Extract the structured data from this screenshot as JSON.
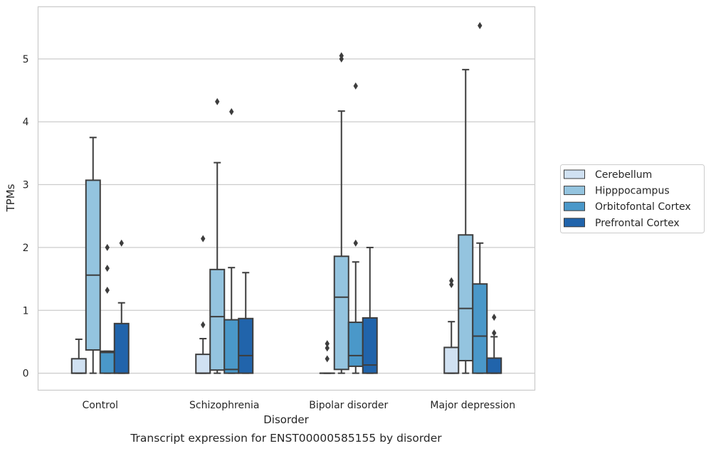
{
  "chart_data": {
    "type": "box",
    "title": "",
    "caption": "Transcript expression for ENST00000585155 by disorder",
    "xlabel": "Disorder",
    "ylabel": "TPMs",
    "ylim": [
      -0.27,
      5.83
    ],
    "yticks": [
      0,
      1,
      2,
      3,
      4,
      5
    ],
    "grid": "horizontal",
    "legend_position": "right",
    "categories": [
      "Control",
      "Schizophrenia",
      "Bipolar disorder",
      "Major depression"
    ],
    "series": [
      {
        "name": "Cerebellum",
        "color": "#d0e1f2",
        "boxes": [
          {
            "whislo": 0.0,
            "q1": 0.0,
            "med": 0.0,
            "q3": 0.23,
            "whishi": 0.54,
            "fliers": []
          },
          {
            "whislo": 0.0,
            "q1": 0.0,
            "med": 0.0,
            "q3": 0.3,
            "whishi": 0.55,
            "fliers": [
              0.77,
              2.14
            ]
          },
          {
            "whislo": 0.0,
            "q1": 0.0,
            "med": 0.0,
            "q3": 0.0,
            "whishi": 0.0,
            "fliers": [
              0.23,
              0.4,
              0.47
            ]
          },
          {
            "whislo": 0.0,
            "q1": 0.0,
            "med": 0.0,
            "q3": 0.41,
            "whishi": 0.82,
            "fliers": [
              1.41,
              1.47
            ]
          }
        ]
      },
      {
        "name": "Hipppocampus",
        "color": "#94c4df",
        "boxes": [
          {
            "whislo": 0.0,
            "q1": 0.37,
            "med": 1.56,
            "q3": 3.07,
            "whishi": 3.75,
            "fliers": []
          },
          {
            "whislo": 0.0,
            "q1": 0.05,
            "med": 0.9,
            "q3": 1.65,
            "whishi": 3.35,
            "fliers": [
              4.32
            ]
          },
          {
            "whislo": 0.0,
            "q1": 0.06,
            "med": 1.21,
            "q3": 1.86,
            "whishi": 4.17,
            "fliers": [
              5.0,
              5.05
            ]
          },
          {
            "whislo": 0.0,
            "q1": 0.2,
            "med": 1.03,
            "q3": 2.2,
            "whishi": 4.83,
            "fliers": []
          }
        ]
      },
      {
        "name": "Orbitofontal Cortex",
        "color": "#4a98c9",
        "boxes": [
          {
            "whislo": 0.0,
            "q1": 0.0,
            "med": 0.33,
            "q3": 0.35,
            "whishi": 0.35,
            "fliers": [
              1.32,
              1.67,
              2.0
            ]
          },
          {
            "whislo": 0.0,
            "q1": 0.0,
            "med": 0.06,
            "q3": 0.85,
            "whishi": 1.68,
            "fliers": [
              4.16
            ]
          },
          {
            "whislo": 0.0,
            "q1": 0.11,
            "med": 0.28,
            "q3": 0.81,
            "whishi": 1.77,
            "fliers": [
              2.07,
              4.57
            ]
          },
          {
            "whislo": 0.0,
            "q1": 0.0,
            "med": 0.59,
            "q3": 1.42,
            "whishi": 2.07,
            "fliers": [
              5.53
            ]
          }
        ]
      },
      {
        "name": "Prefrontal Cortex",
        "color": "#2164ab",
        "boxes": [
          {
            "whislo": 0.0,
            "q1": 0.0,
            "med": 0.0,
            "q3": 0.79,
            "whishi": 1.12,
            "fliers": [
              2.07
            ]
          },
          {
            "whislo": 0.0,
            "q1": 0.0,
            "med": 0.28,
            "q3": 0.87,
            "whishi": 1.6,
            "fliers": []
          },
          {
            "whislo": 0.0,
            "q1": 0.0,
            "med": 0.13,
            "q3": 0.88,
            "whishi": 2.0,
            "fliers": []
          },
          {
            "whislo": 0.0,
            "q1": 0.0,
            "med": 0.0,
            "q3": 0.24,
            "whishi": 0.58,
            "fliers": [
              0.64,
              0.89
            ]
          }
        ]
      }
    ]
  }
}
